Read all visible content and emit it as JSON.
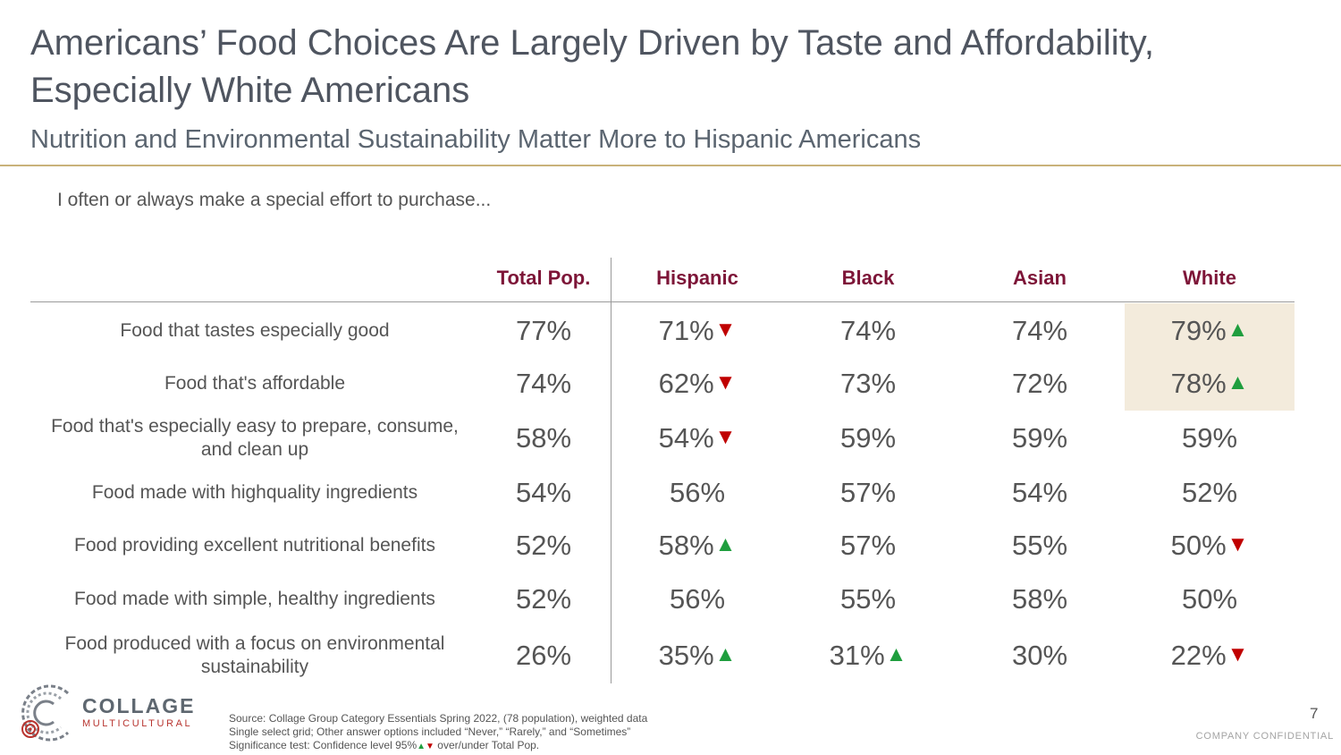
{
  "slide": {
    "title": "Americans’ Food Choices Are Largely Driven by Taste and Affordability, Especially White Americans",
    "subtitle": "Nutrition and Environmental Sustainability Matter More to Hispanic Americans",
    "question": "I often or always make a special effort to purchase...",
    "page_number": "7",
    "confidential": "COMPANY CONFIDENTIAL"
  },
  "colors": {
    "header": "#7d1538",
    "rule": "#c9b27a",
    "highlight": "#f3ebdc",
    "up": "#1f9e3e",
    "down": "#c00000"
  },
  "table": {
    "columns": [
      "Total Pop.",
      "Hispanic",
      "Black",
      "Asian",
      "White"
    ],
    "rows": [
      {
        "label": "Food that tastes especially good",
        "cells": [
          {
            "v": "77%"
          },
          {
            "v": "71%",
            "sig": "down"
          },
          {
            "v": "74%"
          },
          {
            "v": "74%"
          },
          {
            "v": "79%",
            "sig": "up",
            "hl": true
          }
        ]
      },
      {
        "label": "Food that's affordable",
        "cells": [
          {
            "v": "74%"
          },
          {
            "v": "62%",
            "sig": "down"
          },
          {
            "v": "73%"
          },
          {
            "v": "72%"
          },
          {
            "v": "78%",
            "sig": "up",
            "hl": true
          }
        ]
      },
      {
        "label": "Food that's especially easy to prepare, consume, and clean up",
        "cells": [
          {
            "v": "58%"
          },
          {
            "v": "54%",
            "sig": "down"
          },
          {
            "v": "59%"
          },
          {
            "v": "59%"
          },
          {
            "v": "59%"
          }
        ]
      },
      {
        "label": "Food made with highquality ingredients",
        "cells": [
          {
            "v": "54%"
          },
          {
            "v": "56%"
          },
          {
            "v": "57%"
          },
          {
            "v": "54%"
          },
          {
            "v": "52%"
          }
        ]
      },
      {
        "label": "Food providing excellent nutritional benefits",
        "cells": [
          {
            "v": "52%"
          },
          {
            "v": "58%",
            "sig": "up"
          },
          {
            "v": "57%"
          },
          {
            "v": "55%"
          },
          {
            "v": "50%",
            "sig": "down"
          }
        ]
      },
      {
        "label": "Food made with simple, healthy ingredients",
        "cells": [
          {
            "v": "52%"
          },
          {
            "v": "56%"
          },
          {
            "v": "55%"
          },
          {
            "v": "58%"
          },
          {
            "v": "50%"
          }
        ]
      },
      {
        "label": "Food produced with a focus on environmental sustainability",
        "cells": [
          {
            "v": "26%"
          },
          {
            "v": "35%",
            "sig": "up"
          },
          {
            "v": "31%",
            "sig": "up"
          },
          {
            "v": "30%"
          },
          {
            "v": "22%",
            "sig": "down"
          }
        ]
      }
    ]
  },
  "logo": {
    "word": "COLLAGE",
    "sub": "MULTICULTURAL",
    "icon": "collage-logo-icon"
  },
  "footer": {
    "source_line1": "Source: Collage Group Category Essentials Spring 2022, (78 population), weighted data",
    "source_line2": "Single select grid; Other answer options included “Never,” “Rarely,” and “Sometimes”",
    "source_line3_prefix": "Significance test: Confidence level 95%",
    "source_line3_suffix": " over/under Total Pop."
  },
  "symbols": {
    "up": "▲",
    "down": "▼"
  }
}
